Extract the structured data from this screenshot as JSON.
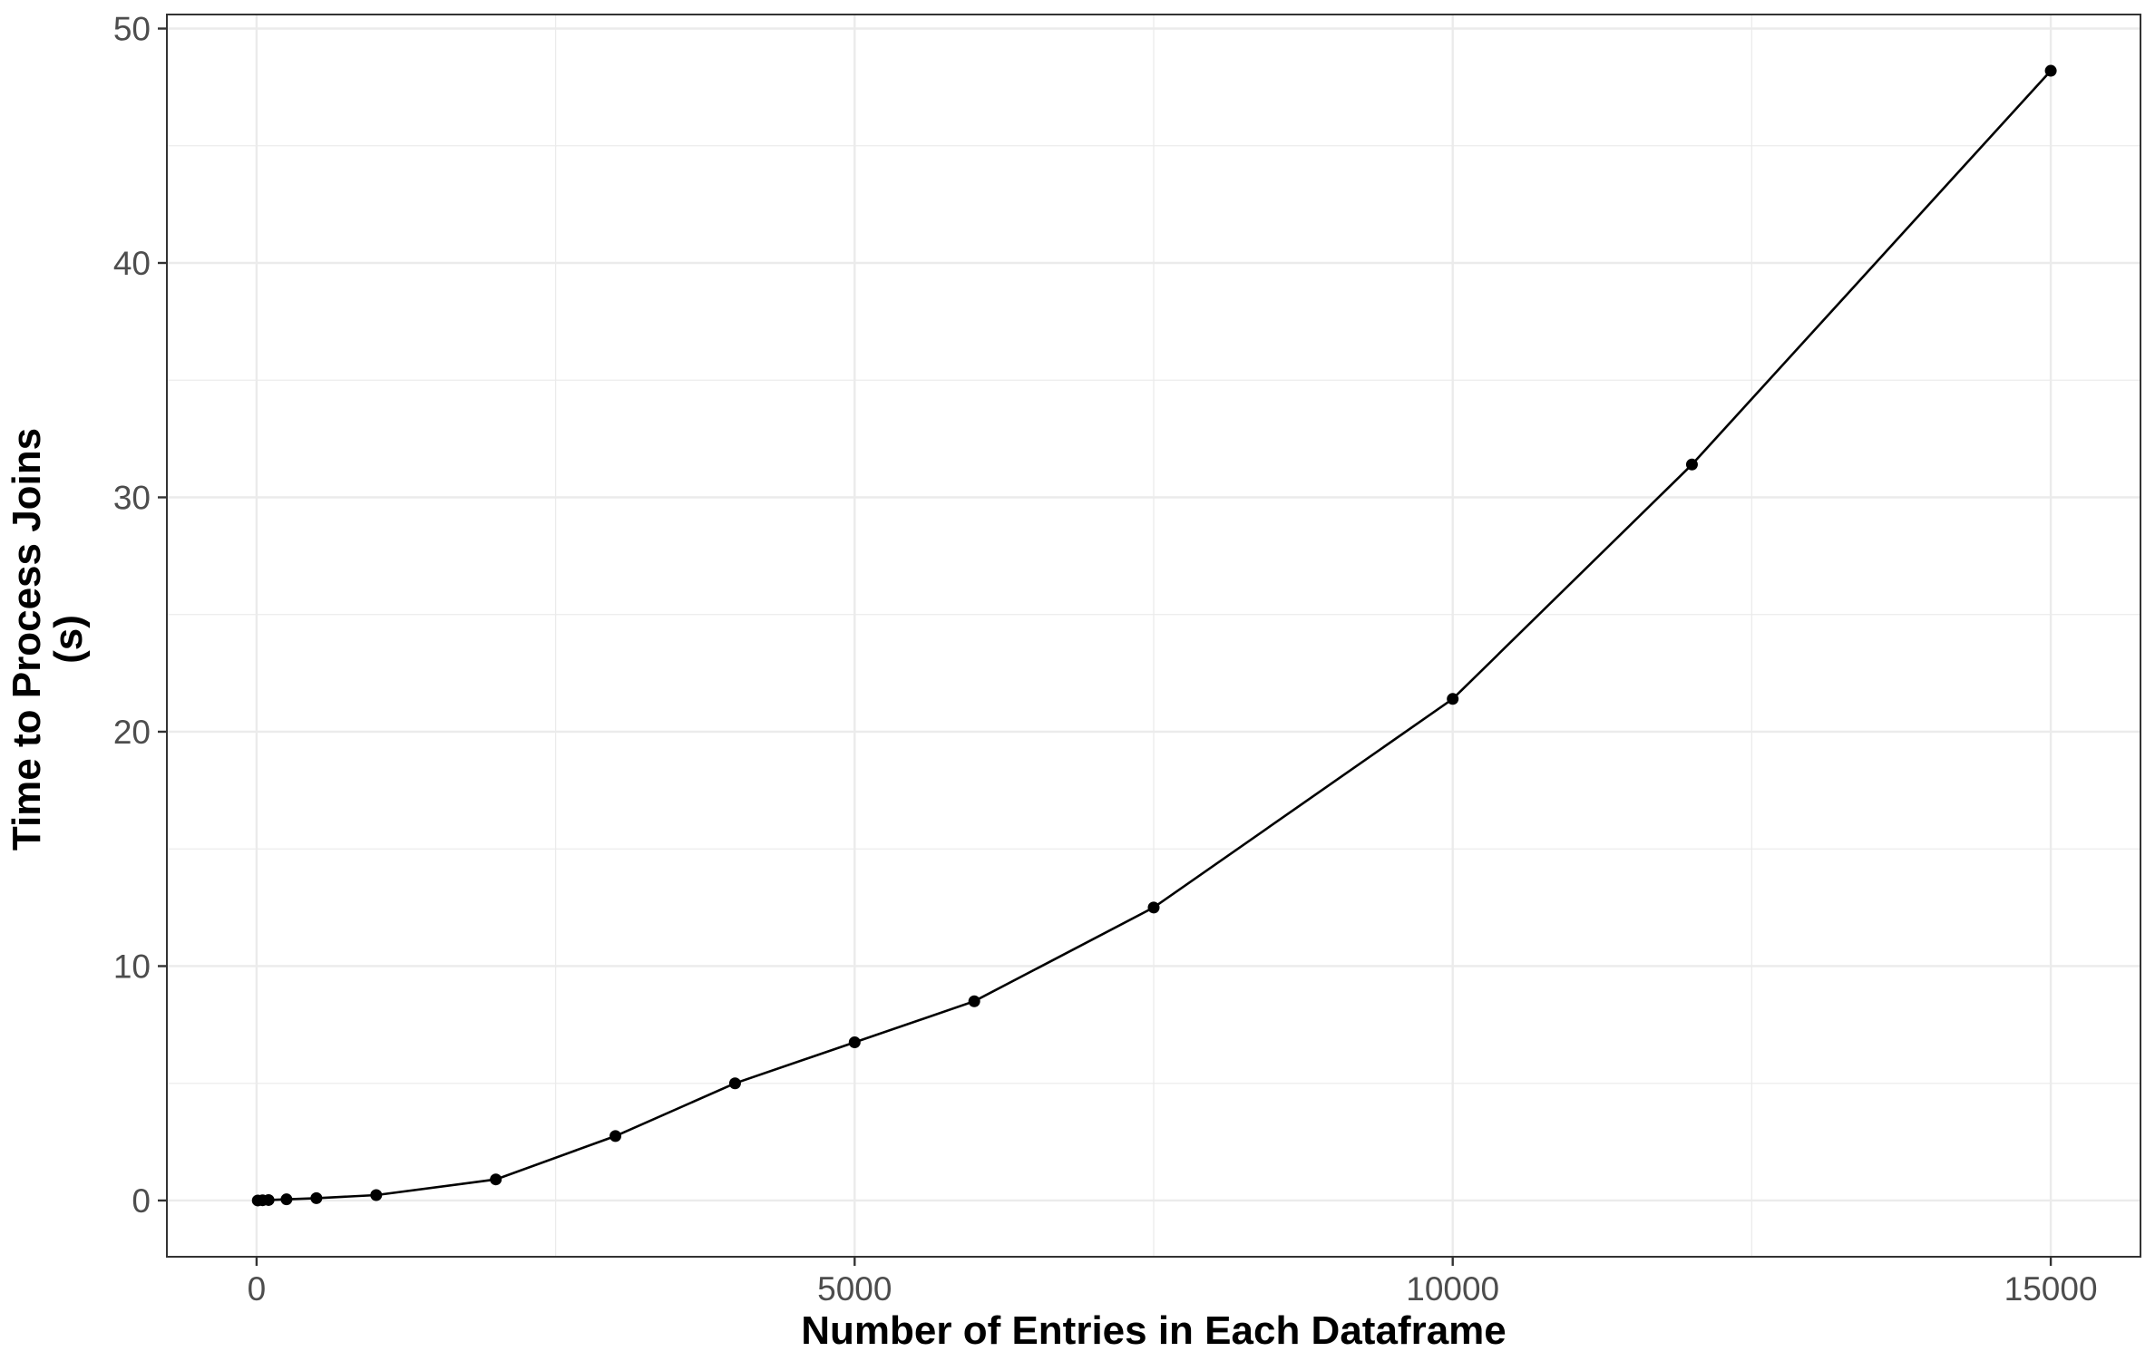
{
  "chart_data": {
    "type": "line",
    "title": "",
    "xlabel": "Number of Entries in Each Dataframe",
    "ylabel_lines": [
      "Time to Process Joins",
      "(s)"
    ],
    "xlim": [
      -750,
      15750
    ],
    "ylim": [
      -2.4,
      50.6
    ],
    "x_ticks": [
      0,
      5000,
      10000,
      15000
    ],
    "x_tick_labels": [
      "0",
      "5000",
      "10000",
      "15000"
    ],
    "x_minor_ticks": [
      2500,
      7500,
      12500
    ],
    "y_ticks": [
      0,
      10,
      20,
      30,
      40,
      50
    ],
    "y_tick_labels": [
      "0",
      "10",
      "20",
      "30",
      "40",
      "50"
    ],
    "y_minor_ticks": [
      5,
      15,
      25,
      35,
      45
    ],
    "grid": true,
    "legend": "none",
    "line_color": "#000000",
    "series": [
      {
        "x": [
          10,
          50,
          100,
          250,
          500,
          1000,
          2000,
          3000,
          4000,
          5000,
          6000,
          7500,
          10000,
          12000,
          15000
        ],
        "y": [
          0.0,
          0.01,
          0.02,
          0.05,
          0.1,
          0.23,
          0.9,
          2.75,
          5.0,
          6.75,
          8.5,
          12.5,
          21.4,
          31.4,
          48.2
        ]
      }
    ]
  }
}
